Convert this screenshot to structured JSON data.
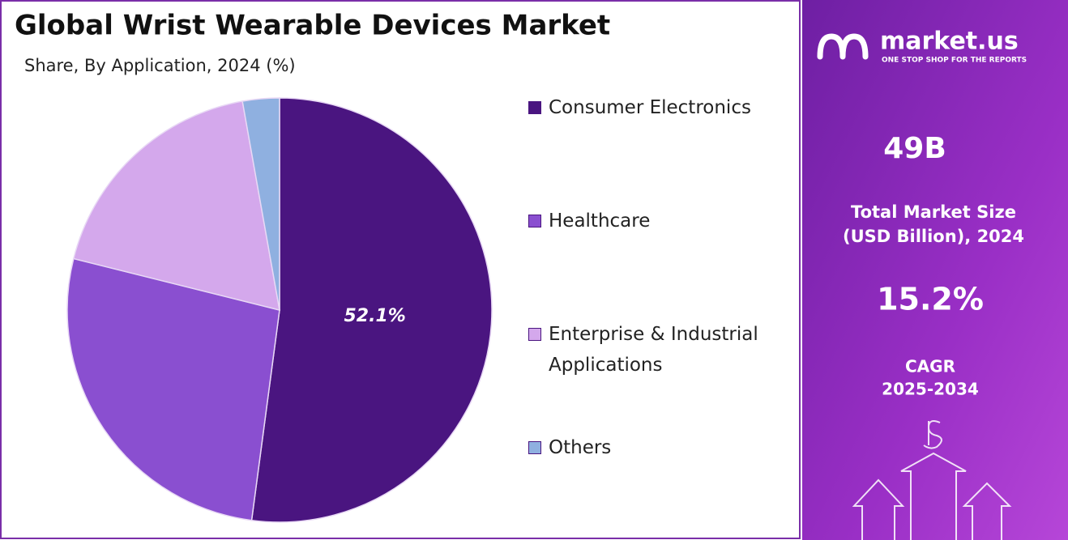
{
  "chart_data": {
    "type": "pie",
    "title": "Global Wrist Wearable Devices Market",
    "subtitle": "Share, By Application, 2024 (%)",
    "categories": [
      "Consumer Electronics",
      "Healthcare",
      "Enterprise & Industrial Applications",
      "Others"
    ],
    "values": [
      52.1,
      26.8,
      18.3,
      2.8
    ],
    "value_labels": [
      "52.1%",
      null,
      null,
      null
    ],
    "colors": [
      "#4a1580",
      "#8a4fd0",
      "#d4a8ec",
      "#8fb0e0"
    ],
    "legend": "right"
  },
  "side_panel": {
    "brand": "market.us",
    "tagline": "ONE STOP SHOP FOR THE REPORTS",
    "market_size": "49B",
    "market_size_label": [
      "Total Market Size",
      "(USD Billion), 2024"
    ],
    "cagr": "15.2%",
    "cagr_label": [
      "CAGR",
      "2025-2034"
    ]
  }
}
